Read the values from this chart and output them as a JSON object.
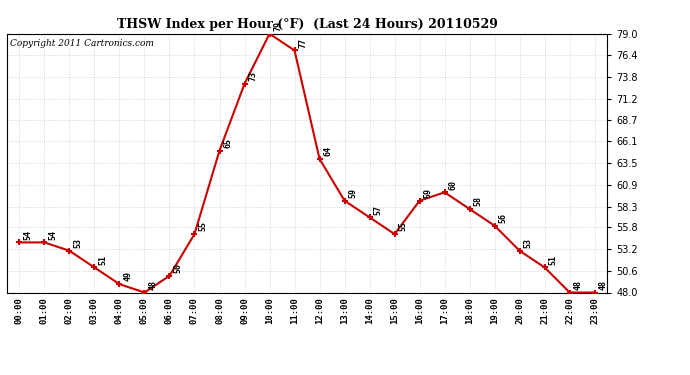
{
  "title": "THSW Index per Hour (°F)  (Last 24 Hours) 20110529",
  "copyright_text": "Copyright 2011 Cartronics.com",
  "hours": [
    "00:00",
    "01:00",
    "02:00",
    "03:00",
    "04:00",
    "05:00",
    "06:00",
    "07:00",
    "08:00",
    "09:00",
    "10:00",
    "11:00",
    "12:00",
    "13:00",
    "14:00",
    "15:00",
    "16:00",
    "17:00",
    "18:00",
    "19:00",
    "20:00",
    "21:00",
    "22:00",
    "23:00"
  ],
  "values": [
    54,
    54,
    53,
    51,
    49,
    48,
    50,
    55,
    65,
    73,
    79,
    77,
    64,
    59,
    57,
    55,
    59,
    60,
    58,
    56,
    53,
    51,
    48,
    48
  ],
  "line_color": "#cc0000",
  "marker_color": "#cc0000",
  "bg_color": "#ffffff",
  "grid_color": "#c0c0c0",
  "ylim_min": 48.0,
  "ylim_max": 79.0,
  "yticks": [
    48.0,
    50.6,
    53.2,
    55.8,
    58.3,
    60.9,
    63.5,
    66.1,
    68.7,
    71.2,
    73.8,
    76.4,
    79.0
  ]
}
